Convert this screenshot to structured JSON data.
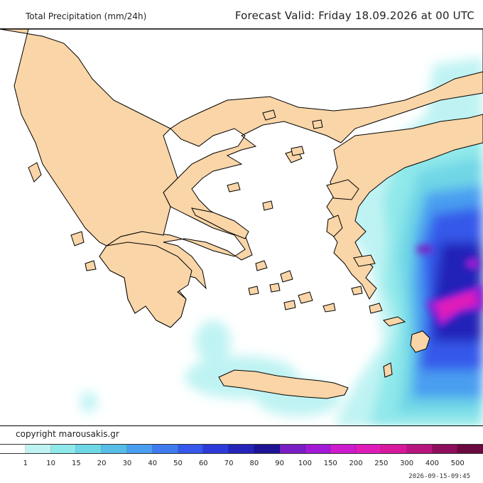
{
  "header": {
    "title": "Total Precipitation (mm/24h)",
    "forecast": "Forecast Valid:  Friday 18.09.2026 at 00 UTC"
  },
  "footer": {
    "copyright": "copyright marousakis.gr",
    "timestamp": "2026-09-15-09:45"
  },
  "legend": {
    "labels": [
      "1",
      "10",
      "15",
      "20",
      "30",
      "40",
      "50",
      "60",
      "70",
      "80",
      "90",
      "100",
      "150",
      "200",
      "250",
      "300",
      "400",
      "500"
    ],
    "colors": [
      "#ffffff",
      "#bff3f3",
      "#8fe8ea",
      "#6fd6e6",
      "#57bde6",
      "#4a9ef0",
      "#3f7bef",
      "#3558ea",
      "#2c3ad9",
      "#2424b8",
      "#1c1494",
      "#7a1fc4",
      "#a31ad6",
      "#cc1ccc",
      "#e01cb8",
      "#d8189c",
      "#b8147e",
      "#8e0e5c",
      "#6a0a40"
    ]
  },
  "map": {
    "land_color": "#f9d5a7",
    "sea_color": "#ffffff",
    "coast_color": "#000000"
  }
}
